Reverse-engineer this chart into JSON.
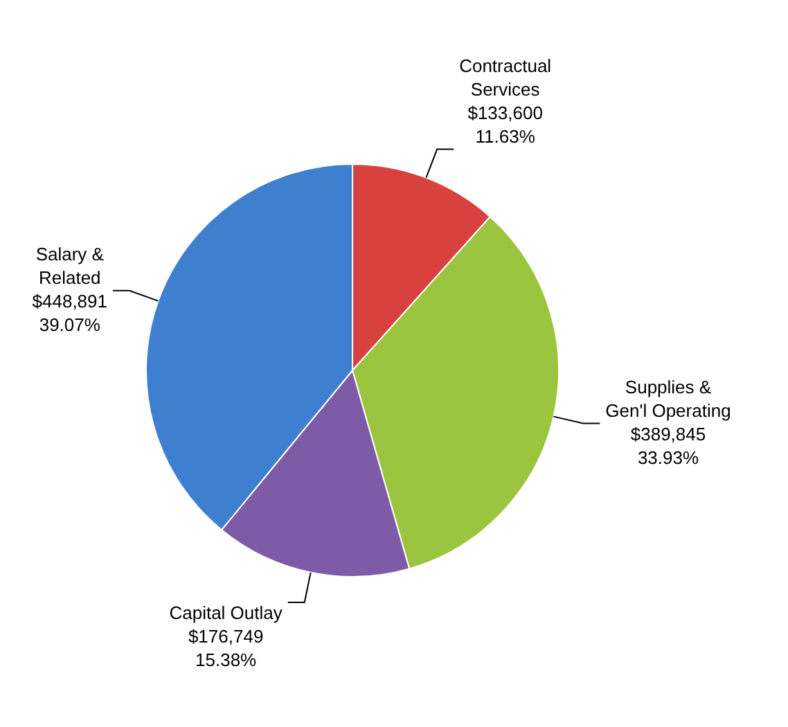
{
  "chart_data": {
    "type": "pie",
    "categories": [
      "Contractual\nServices",
      "Supplies &\nGen'l Operating",
      "Capital Outlay",
      "Salary &\nRelated"
    ],
    "values": [
      133600,
      389845,
      176749,
      448891
    ],
    "value_labels": [
      "$133,600\n11.63%",
      "$389,845\n33.93%",
      "$176,749\n15.38%",
      "$448,891\n39.07%"
    ],
    "colors": [
      "#d9413f",
      "#9bc53f",
      "#7d5ba6",
      "#3f7fd0"
    ],
    "legend": false
  }
}
